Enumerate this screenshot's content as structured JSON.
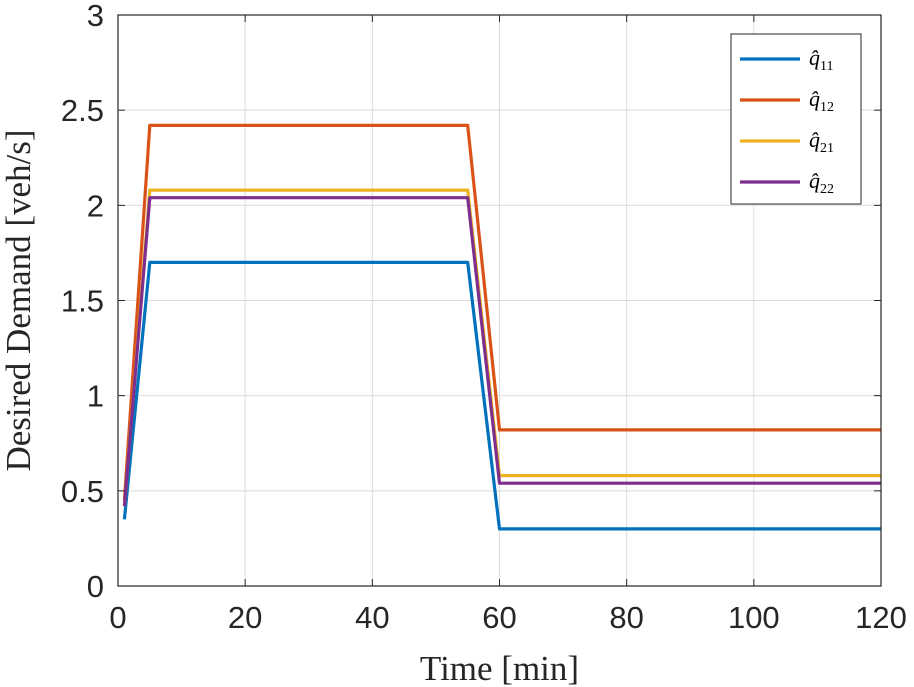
{
  "chart_data": {
    "type": "line",
    "xlabel": "Time [min]",
    "ylabel": "Desired Demand [veh/s]",
    "xlim": [
      0,
      120
    ],
    "ylim": [
      0,
      3
    ],
    "xticks": [
      0,
      20,
      40,
      60,
      80,
      100,
      120
    ],
    "yticks": [
      0,
      0.5,
      1,
      1.5,
      2,
      2.5,
      3
    ],
    "xtick_labels": [
      "0",
      "20",
      "40",
      "60",
      "80",
      "100",
      "120"
    ],
    "ytick_labels": [
      "0",
      "0.5",
      "1",
      "1.5",
      "2",
      "2.5",
      "3"
    ],
    "grid": true,
    "legend_position": "top-right",
    "series": [
      {
        "name": "q̂11",
        "base": "q̂",
        "sub": "11",
        "color": "#0072BD",
        "x": [
          1,
          5,
          55,
          60,
          120
        ],
        "y": [
          0.35,
          1.7,
          1.7,
          0.3,
          0.3
        ]
      },
      {
        "name": "q̂12",
        "base": "q̂",
        "sub": "12",
        "color": "#D95319",
        "x": [
          1,
          5,
          55,
          60,
          120
        ],
        "y": [
          0.45,
          2.42,
          2.42,
          0.82,
          0.82
        ]
      },
      {
        "name": "q̂21",
        "base": "q̂",
        "sub": "21",
        "color": "#EDB120",
        "x": [
          1,
          5,
          55,
          60,
          120
        ],
        "y": [
          0.42,
          2.08,
          2.08,
          0.58,
          0.58
        ]
      },
      {
        "name": "q̂22",
        "base": "q̂",
        "sub": "22",
        "color": "#7E2F8E",
        "x": [
          1,
          5,
          55,
          60,
          120
        ],
        "y": [
          0.42,
          2.04,
          2.04,
          0.54,
          0.54
        ]
      }
    ]
  }
}
